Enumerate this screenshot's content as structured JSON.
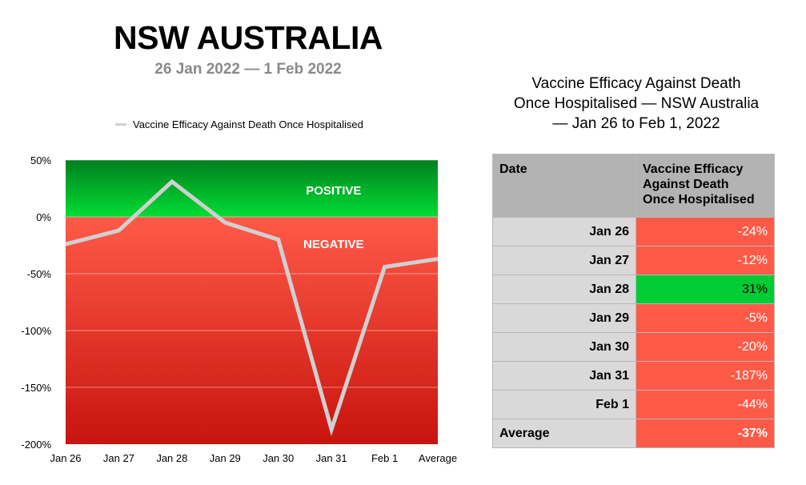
{
  "title": "NSW AUSTRALIA",
  "subtitle": "26 Jan 2022 — 1 Feb 2022",
  "colors": {
    "positive": "#00cc33",
    "negative": "#ff5a48",
    "line": "#d0d0d0"
  },
  "chart_data": {
    "type": "line",
    "title": "NSW AUSTRALIA",
    "subtitle": "26 Jan 2022 — 1 Feb 2022",
    "categories": [
      "Jan 26",
      "Jan 27",
      "Jan 28",
      "Jan 29",
      "Jan 30",
      "Jan 31",
      "Feb 1",
      "Average"
    ],
    "series": [
      {
        "name": "Vaccine Efficacy Against Death Once Hospitalised",
        "values": [
          -24,
          -12,
          31,
          -5,
          -20,
          -187,
          -44,
          -37
        ]
      }
    ],
    "ylim": [
      -200,
      50
    ],
    "yticks": [
      50,
      0,
      -50,
      -100,
      -150,
      -200
    ],
    "ytick_labels": [
      "50%",
      "0%",
      "-50%",
      "-100%",
      "-150%",
      "-200%"
    ],
    "legend": "top",
    "grid": true,
    "region_labels": {
      "positive": "POSITIVE",
      "negative": "NEGATIVE"
    }
  },
  "table": {
    "title_lines": [
      "Vaccine Efficacy Against Death",
      "Once Hospitalised — NSW Australia",
      "— Jan 26 to Feb 1, 2022"
    ],
    "header_date": "Date",
    "header_value": [
      "Vaccine Efficacy",
      "Against Death",
      "Once Hospitalised"
    ],
    "rows": [
      {
        "date": "Jan 26",
        "value": "-24%"
      },
      {
        "date": "Jan 27",
        "value": "-12%"
      },
      {
        "date": "Jan 28",
        "value": "31%"
      },
      {
        "date": "Jan 29",
        "value": "-5%"
      },
      {
        "date": "Jan 30",
        "value": "-20%"
      },
      {
        "date": "Jan 31",
        "value": "-187%"
      },
      {
        "date": "Feb 1",
        "value": "-44%"
      }
    ],
    "average": {
      "label": "Average",
      "value": "-37%"
    }
  }
}
